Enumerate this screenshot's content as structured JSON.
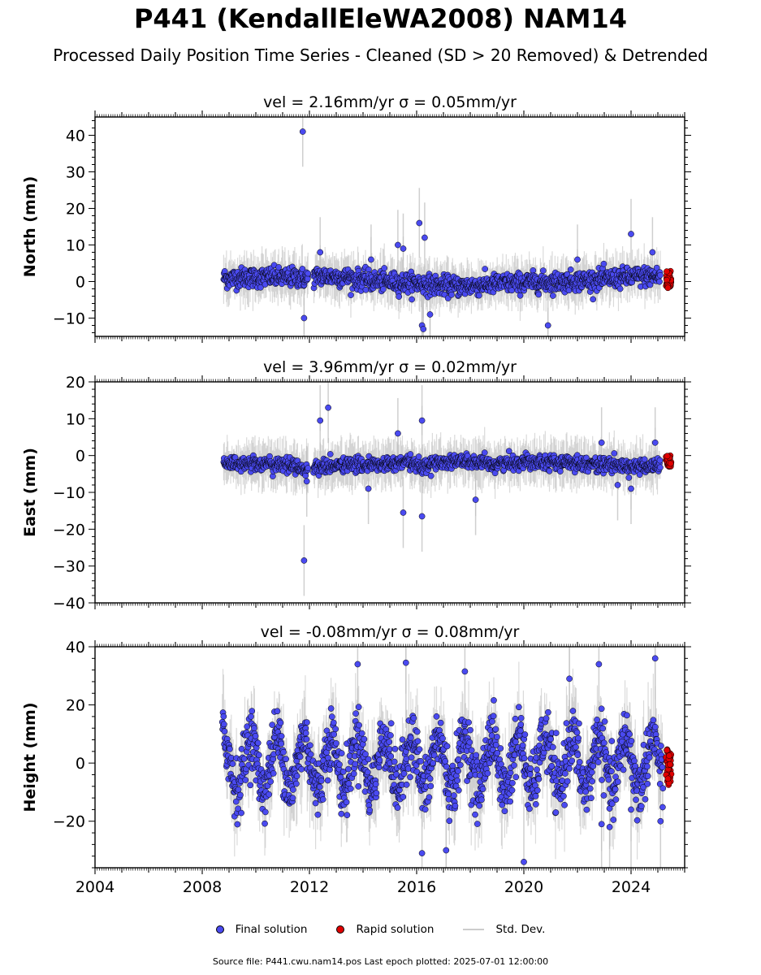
{
  "figure": {
    "title": "P441 (KendallEleWA2008) NAM14",
    "subtitle": "Processed Daily Position Time Series - Cleaned (SD > 20 Removed) & Detrended",
    "footer": "Source file: P441.cwu.nam14.pos  Last epoch plotted: 2025-07-01 12:00:00"
  },
  "legend": {
    "final": "Final solution",
    "rapid": "Rapid solution",
    "sd": "Std. Dev."
  },
  "colors": {
    "final": "#4a4af0",
    "rapid": "#e00000",
    "sd": "#bbbbbb",
    "edge": "#000000"
  },
  "chart_data": [
    {
      "type": "scatter",
      "title": "vel = 2.16mm/yr   σ = 0.05mm/yr",
      "ylabel": "North (mm)",
      "xlim": [
        2004,
        2026
      ],
      "ylim": [
        -15,
        45
      ],
      "yticks": [
        -10,
        0,
        10,
        20,
        30,
        40
      ],
      "xticks": [
        2004,
        2008,
        2012,
        2016,
        2020,
        2024
      ],
      "show_xtick_labels": false,
      "series_final": {
        "x": [
          2008.8,
          2009.0,
          2009.5,
          2010.0,
          2010.5,
          2011.0,
          2011.5,
          2011.9,
          2012.3,
          2012.8,
          2013.3,
          2013.8,
          2014.3,
          2014.8,
          2015.3,
          2015.8,
          2016.2,
          2016.7,
          2017.2,
          2017.7,
          2018.2,
          2018.7,
          2019.2,
          2019.7,
          2020.2,
          2020.7,
          2021.2,
          2021.7,
          2022.2,
          2022.7,
          2023.2,
          2023.7,
          2024.2,
          2024.7,
          2025.1
        ],
        "y": [
          1.0,
          0.8,
          1.2,
          1.0,
          1.3,
          1.0,
          1.2,
          0.8,
          1.5,
          1.4,
          1.2,
          0.6,
          0.2,
          0.0,
          -0.3,
          -0.4,
          -0.6,
          -1.0,
          -1.2,
          -1.3,
          -1.1,
          -0.8,
          -0.5,
          -0.4,
          -0.2,
          -0.2,
          -0.1,
          0.1,
          0.3,
          0.5,
          0.8,
          1.0,
          1.3,
          1.5,
          1.4
        ]
      },
      "outliers": [
        {
          "x": 2011.75,
          "y": 41
        },
        {
          "x": 2011.8,
          "y": -10
        },
        {
          "x": 2012.4,
          "y": 8
        },
        {
          "x": 2014.3,
          "y": 6
        },
        {
          "x": 2015.3,
          "y": 10
        },
        {
          "x": 2015.5,
          "y": 9
        },
        {
          "x": 2016.1,
          "y": 16
        },
        {
          "x": 2016.2,
          "y": -12
        },
        {
          "x": 2016.25,
          "y": -13
        },
        {
          "x": 2016.5,
          "y": -9
        },
        {
          "x": 2016.3,
          "y": 12
        },
        {
          "x": 2020.9,
          "y": -12
        },
        {
          "x": 2024.0,
          "y": 13
        },
        {
          "x": 2022.0,
          "y": 6
        },
        {
          "x": 2024.8,
          "y": 8
        }
      ],
      "series_rapid": {
        "x_range": [
          2025.3,
          2025.5
        ],
        "y_range": [
          -2,
          3
        ]
      },
      "noise": 2.2,
      "sd_len": 6
    },
    {
      "type": "scatter",
      "title": "vel = 3.96mm/yr   σ = 0.02mm/yr",
      "ylabel": "East (mm)",
      "xlim": [
        2004,
        2026
      ],
      "ylim": [
        -40,
        20
      ],
      "yticks": [
        -40,
        -30,
        -20,
        -10,
        0,
        10,
        20
      ],
      "xticks": [
        2004,
        2008,
        2012,
        2016,
        2020,
        2024
      ],
      "show_xtick_labels": false,
      "series_final": {
        "x": [
          2008.8,
          2009.0,
          2009.5,
          2010.0,
          2010.5,
          2011.0,
          2011.5,
          2011.9,
          2012.3,
          2012.8,
          2013.3,
          2013.8,
          2014.3,
          2014.8,
          2015.3,
          2015.8,
          2016.2,
          2016.7,
          2017.2,
          2017.7,
          2018.2,
          2018.7,
          2019.2,
          2019.7,
          2020.2,
          2020.7,
          2021.2,
          2021.7,
          2022.2,
          2022.7,
          2023.2,
          2023.7,
          2024.2,
          2024.7,
          2025.1
        ],
        "y": [
          -1.5,
          -2.0,
          -2.2,
          -2.0,
          -2.5,
          -2.5,
          -2.8,
          -4.0,
          -3.0,
          -3.0,
          -2.5,
          -2.5,
          -2.5,
          -2.5,
          -2.0,
          -2.0,
          -3.0,
          -2.0,
          -1.5,
          -1.5,
          -2.0,
          -2.5,
          -2.0,
          -2.0,
          -1.5,
          -1.5,
          -2.0,
          -2.0,
          -2.0,
          -2.5,
          -2.5,
          -3.0,
          -3.0,
          -3.0,
          -2.5
        ]
      },
      "outliers": [
        {
          "x": 2011.8,
          "y": -28.5
        },
        {
          "x": 2012.4,
          "y": 9.5
        },
        {
          "x": 2012.7,
          "y": 13
        },
        {
          "x": 2014.2,
          "y": -9
        },
        {
          "x": 2015.5,
          "y": -15.5
        },
        {
          "x": 2016.2,
          "y": 9.5
        },
        {
          "x": 2016.2,
          "y": -16.5
        },
        {
          "x": 2018.2,
          "y": -12
        },
        {
          "x": 2015.3,
          "y": 6
        },
        {
          "x": 2011.9,
          "y": -7
        },
        {
          "x": 2023.5,
          "y": -8
        },
        {
          "x": 2024.0,
          "y": -9
        },
        {
          "x": 2022.9,
          "y": 3.5
        },
        {
          "x": 2024.9,
          "y": 3.5
        }
      ],
      "series_rapid": {
        "x_range": [
          2025.3,
          2025.5
        ],
        "y_range": [
          -3,
          0
        ]
      },
      "noise": 1.6,
      "sd_len": 6
    },
    {
      "type": "scatter",
      "title": "vel = -0.08mm/yr   σ = 0.08mm/yr",
      "ylabel": "Height (mm)",
      "xlim": [
        2004,
        2026
      ],
      "ylim": [
        -36,
        40
      ],
      "yticks": [
        -20,
        0,
        20,
        40
      ],
      "xticks": [
        2004,
        2008,
        2012,
        2016,
        2020,
        2024
      ],
      "show_xtick_labels": true,
      "series_final": {
        "seasonal_amplitude": 9,
        "x_start": 2008.75,
        "x_end": 2025.2
      },
      "outliers": [
        {
          "x": 2013.8,
          "y": 34
        },
        {
          "x": 2015.6,
          "y": 34.5
        },
        {
          "x": 2017.8,
          "y": 31.5
        },
        {
          "x": 2021.7,
          "y": 29
        },
        {
          "x": 2022.8,
          "y": 34
        },
        {
          "x": 2024.9,
          "y": 36
        },
        {
          "x": 2016.2,
          "y": -31
        },
        {
          "x": 2017.1,
          "y": -30
        },
        {
          "x": 2020.0,
          "y": -34
        },
        {
          "x": 2022.9,
          "y": -21
        },
        {
          "x": 2023.2,
          "y": -22
        },
        {
          "x": 2024.0,
          "y": -16
        },
        {
          "x": 2025.1,
          "y": -20
        }
      ],
      "series_rapid": {
        "x_range": [
          2025.3,
          2025.5
        ],
        "y_range": [
          -8,
          5
        ]
      },
      "noise": 5,
      "sd_len": 14
    }
  ]
}
